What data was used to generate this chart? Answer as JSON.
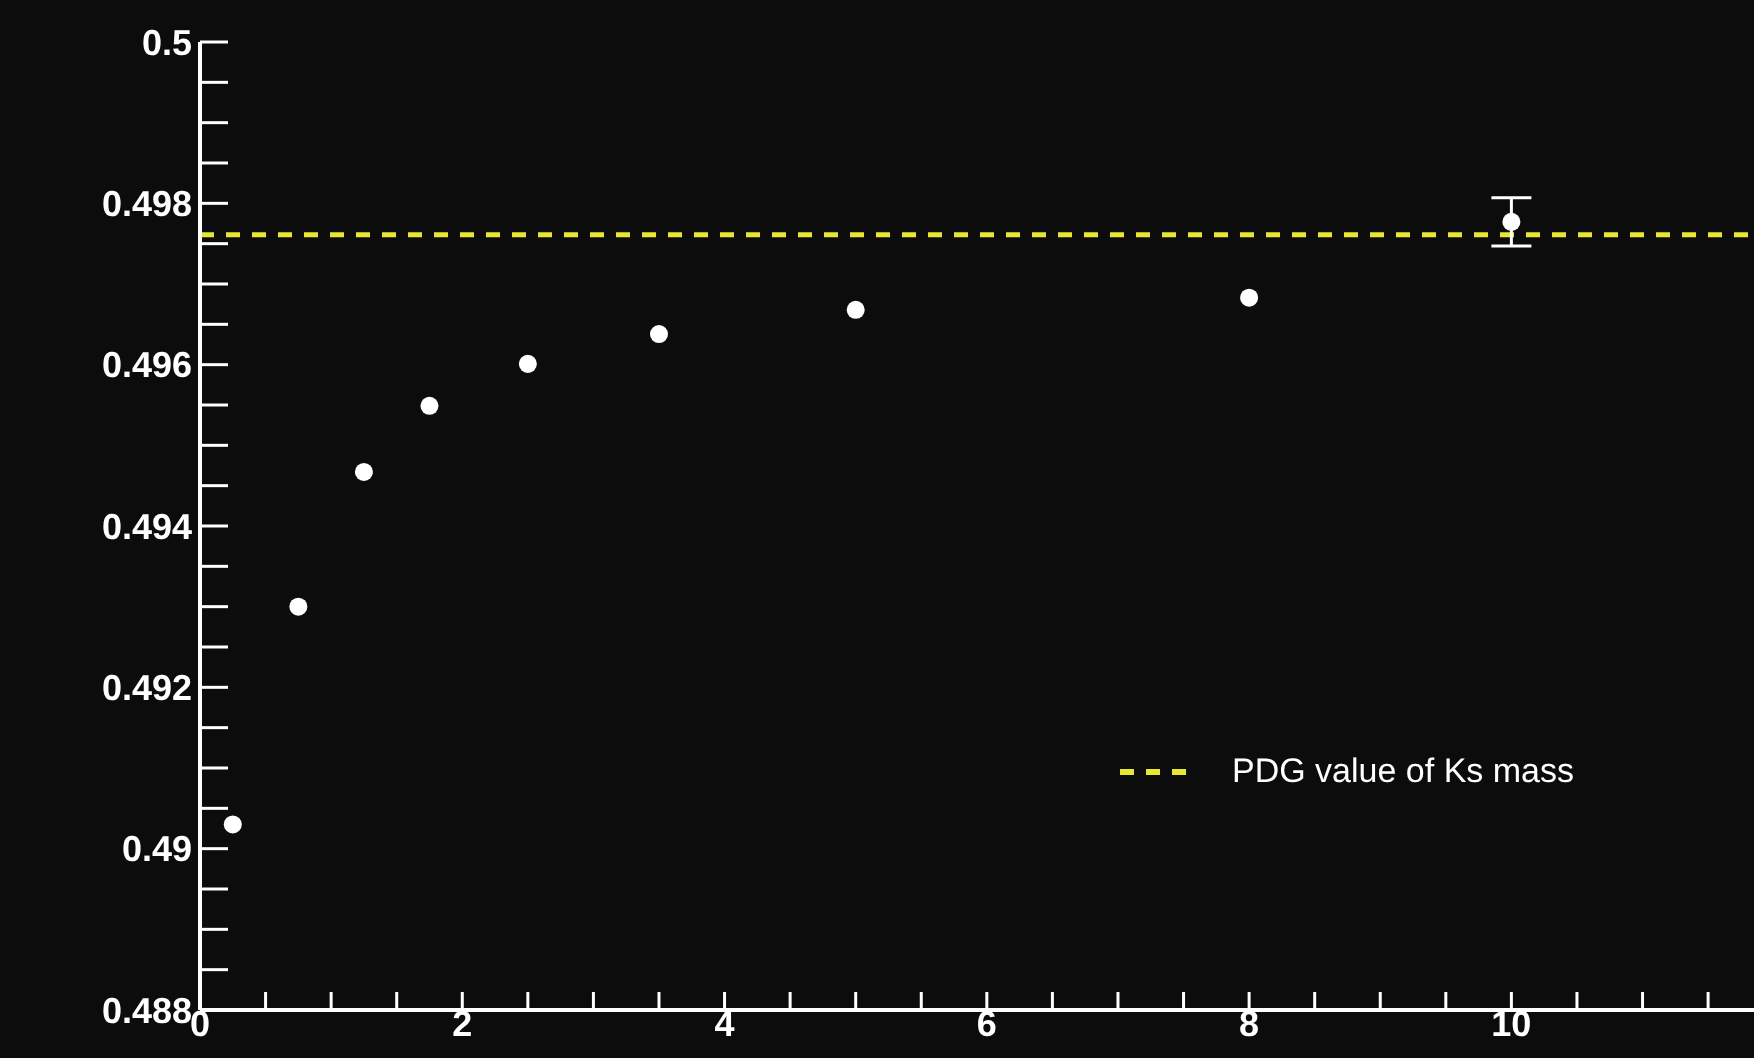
{
  "chart_data": {
    "type": "scatter",
    "x": [
      0.25,
      0.75,
      1.25,
      1.75,
      2.5,
      3.5,
      5,
      8,
      10
    ],
    "series": [
      {
        "color": "#ffffff",
        "values": [
          0.4903,
          0.493,
          0.49467,
          0.49549,
          0.49601,
          0.49638,
          0.49668,
          0.49683,
          0.49777
        ],
        "errors": [
          null,
          null,
          null,
          null,
          null,
          null,
          null,
          null,
          0.0003
        ]
      }
    ],
    "xlim": [
      0,
      11.85
    ],
    "xticks": [
      0,
      {
        "value": 0.5,
        "label": null
      },
      {
        "value": 1,
        "label": null
      },
      {
        "value": 1.5,
        "label": null
      },
      2,
      {
        "value": 2.5,
        "label": null
      },
      {
        "value": 3,
        "label": null
      },
      {
        "value": 3.5,
        "label": null
      },
      4,
      {
        "value": 4.5,
        "label": null
      },
      {
        "value": 5,
        "label": null
      },
      {
        "value": 5.5,
        "label": null
      },
      6,
      {
        "value": 6.5,
        "label": null
      },
      {
        "value": 7,
        "label": null
      },
      {
        "value": 7.5,
        "label": null
      },
      8,
      {
        "value": 8.5,
        "label": null
      },
      {
        "value": 9,
        "label": null
      },
      {
        "value": 9.5,
        "label": null
      },
      10,
      {
        "value": 10.5,
        "label": null
      },
      {
        "value": 11,
        "label": null
      },
      {
        "value": 11.5,
        "label": null
      }
    ],
    "ylim": [
      0.488,
      0.5
    ],
    "yticks": [
      0.488,
      {
        "value": 0.4885,
        "label": null
      },
      {
        "value": 0.489,
        "label": null
      },
      {
        "value": 0.4895,
        "label": null
      },
      0.49,
      {
        "value": 0.4905,
        "label": null
      },
      {
        "value": 0.491,
        "label": null
      },
      {
        "value": 0.4915,
        "label": null
      },
      0.492,
      {
        "value": 0.4925,
        "label": null
      },
      {
        "value": 0.493,
        "label": null
      },
      {
        "value": 0.4935,
        "label": null
      },
      0.494,
      {
        "value": 0.4945,
        "label": null
      },
      {
        "value": 0.495,
        "label": null
      },
      {
        "value": 0.4955,
        "label": null
      },
      0.496,
      {
        "value": 0.4965,
        "label": null
      },
      {
        "value": 0.497,
        "label": null
      },
      {
        "value": 0.4975,
        "label": null
      },
      0.498,
      {
        "value": 0.4985,
        "label": null
      },
      {
        "value": 0.499,
        "label": null
      },
      {
        "value": 0.4995,
        "label": null
      },
      0.5
    ],
    "ref_lines": [
      {
        "axis": "y",
        "value": 0.49761,
        "label": "PDG value of Ks mass",
        "color": "#e8e830",
        "line_style": "dashed"
      }
    ],
    "marker": "circle"
  }
}
